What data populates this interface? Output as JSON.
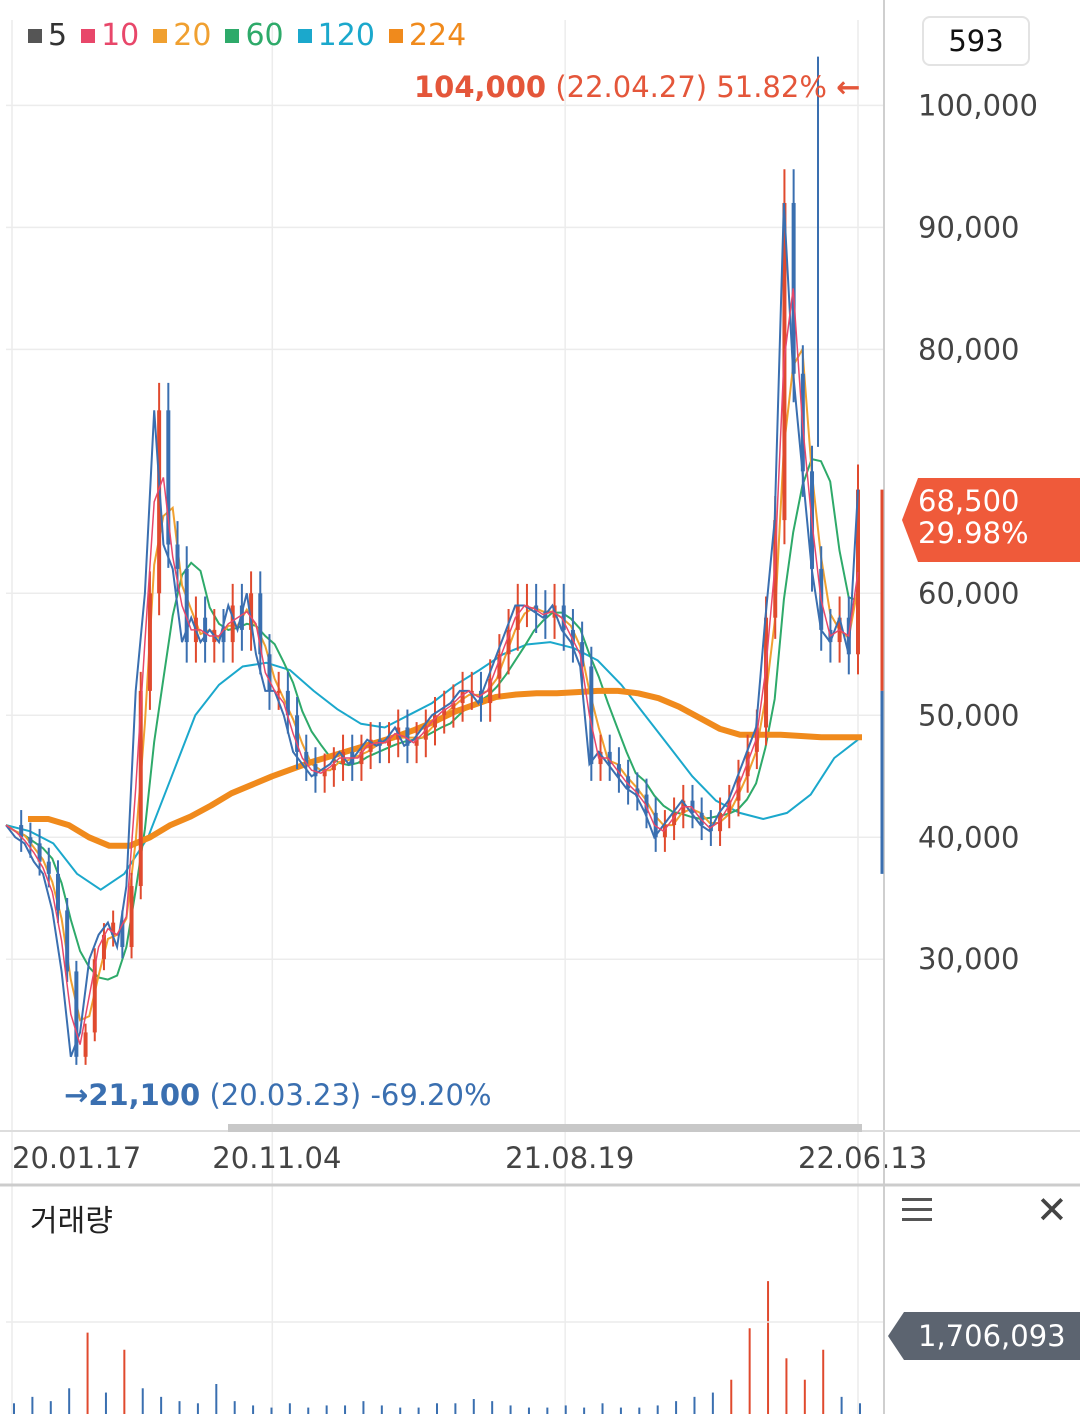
{
  "legend": [
    {
      "label": "5",
      "color": "#555555"
    },
    {
      "label": "10",
      "color": "#e8476a"
    },
    {
      "label": "20",
      "color": "#f0a030"
    },
    {
      "label": "60",
      "color": "#2eaa6a"
    },
    {
      "label": "120",
      "color": "#1ba8cc"
    },
    {
      "label": "224",
      "color": "#f08a1c"
    }
  ],
  "count_box": "593",
  "high_annotation": {
    "arrow": "←",
    "price": "104,000",
    "date": "(22.04.27)",
    "pct": "51.82%"
  },
  "low_annotation": {
    "arrow": "→",
    "price": "21,100",
    "date": "(20.03.23)",
    "pct": "-69.20%"
  },
  "current": {
    "price": "68,500",
    "change": "29.98%"
  },
  "volume": {
    "title": "거래량",
    "value": "1,706,093"
  },
  "chart_data": {
    "type": "candlestick",
    "y_ticks": [
      {
        "v": 100000,
        "label": "100,000"
      },
      {
        "v": 90000,
        "label": "90,000"
      },
      {
        "v": 80000,
        "label": "80,000"
      },
      {
        "v": 60000,
        "label": "60,000"
      },
      {
        "v": 50000,
        "label": "50,000"
      },
      {
        "v": 40000,
        "label": "40,000"
      },
      {
        "v": 30000,
        "label": "30,000"
      }
    ],
    "ylim": [
      16000,
      107000
    ],
    "x_ticks": [
      "20.01.17",
      "20.11.04",
      "21.08.19",
      "22.06.13"
    ],
    "x_tick_index": [
      0,
      48,
      102,
      156
    ],
    "price_series": [
      41000,
      40000,
      39500,
      38000,
      37000,
      34000,
      29000,
      22000,
      24000,
      30000,
      32000,
      33000,
      31000,
      36000,
      52000,
      60000,
      75000,
      64000,
      62000,
      56000,
      58000,
      56000,
      57000,
      56000,
      59000,
      57000,
      60000,
      55000,
      52000,
      52000,
      50000,
      47000,
      46000,
      45000,
      45500,
      46000,
      47000,
      46000,
      47000,
      48000,
      47500,
      48000,
      49000,
      47500,
      48000,
      49000,
      50000,
      50500,
      51000,
      52000,
      52000,
      51000,
      53000,
      55000,
      57000,
      59000,
      59000,
      58500,
      58000,
      59000,
      57000,
      56000,
      54000,
      46000,
      47000,
      46000,
      45000,
      44000,
      43500,
      42000,
      40000,
      41000,
      42000,
      43000,
      42000,
      41000,
      40500,
      42000,
      43000,
      45000,
      47000,
      49000,
      58000,
      66000,
      92000,
      78000,
      70000,
      62000,
      57000,
      56000,
      58000,
      55000,
      68500
    ],
    "ma224": [
      41500,
      41500,
      41000,
      40000,
      39300,
      39300,
      40000,
      41000,
      41700,
      42600,
      43600,
      44300,
      45000,
      45600,
      46200,
      46700,
      47200,
      47700,
      48200,
      48800,
      49500,
      50300,
      50900,
      51500,
      51700,
      51800,
      51800,
      51900,
      52000,
      52000,
      51800,
      51400,
      50700,
      49800,
      48900,
      48400,
      48400,
      48400,
      48300,
      48200,
      48200,
      48200
    ],
    "ma120": [
      41000,
      40500,
      39500,
      37000,
      35700,
      37000,
      40000,
      45000,
      50000,
      52500,
      54000,
      54300,
      53700,
      52000,
      50500,
      49300,
      49000,
      50000,
      51000,
      52500,
      53700,
      55000,
      55800,
      56000,
      55500,
      54500,
      52500,
      50000,
      47500,
      45000,
      43000,
      42000,
      41500,
      42000,
      43500,
      46500,
      48000
    ],
    "volume_series": [
      5,
      8,
      6,
      12,
      38,
      10,
      30,
      12,
      8,
      6,
      5,
      14,
      6,
      4,
      3,
      5,
      3,
      4,
      4,
      6,
      4,
      3,
      3,
      5,
      5,
      7,
      6,
      4,
      3,
      3,
      4,
      3,
      5,
      3,
      3,
      4,
      6,
      8,
      10,
      16,
      40,
      62,
      26,
      16,
      30,
      8,
      5
    ]
  }
}
